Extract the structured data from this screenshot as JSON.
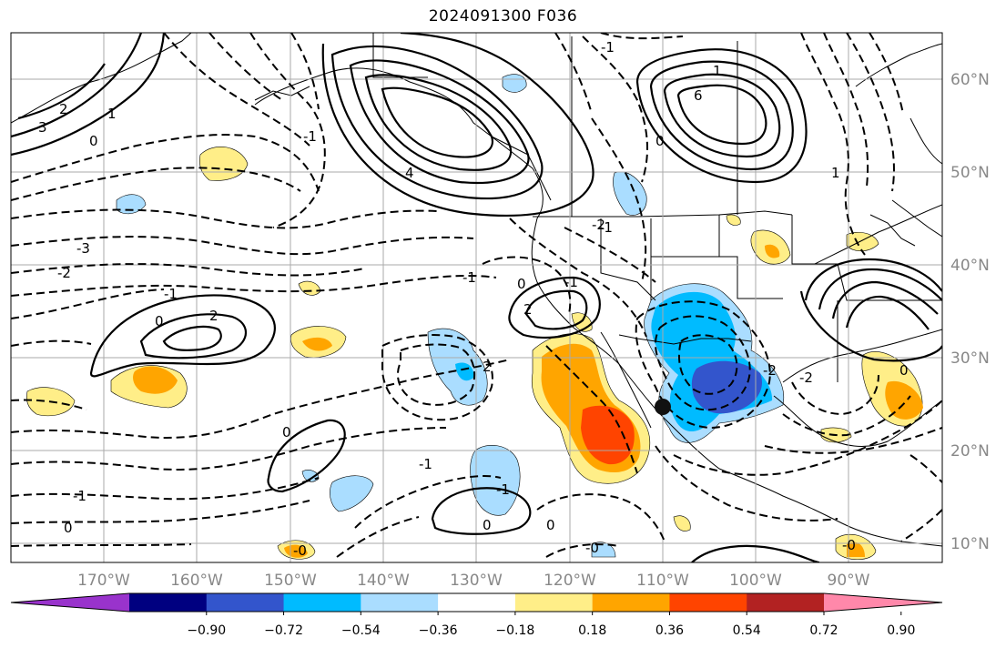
{
  "title": "2024091300 F036",
  "longitude_labels": [
    "170°W",
    "160°W",
    "150°W",
    "140°W",
    "130°W",
    "120°W",
    "110°W",
    "100°W",
    "90°W"
  ],
  "latitude_labels": [
    "60°N",
    "50°N",
    "40°N",
    "30°N",
    "20°N",
    "10°N"
  ],
  "colorbar": {
    "colors": [
      "#9933cc",
      "#000080",
      "#3355cc",
      "#00bbff",
      "#aaddff",
      "#ffffff",
      "#ffee88",
      "#ffa500",
      "#ff4400",
      "#b22222",
      "#ff88aa"
    ],
    "labels": [
      "−0.90",
      "−0.72",
      "−0.54",
      "−0.36",
      "−0.18",
      "0.18",
      "0.36",
      "0.54",
      "0.72",
      "0.90"
    ]
  },
  "contour_labels": [
    "3",
    "2",
    "1",
    "0",
    "-1",
    "-2",
    "-3",
    "4",
    "6",
    "1",
    "0",
    "-1",
    "2",
    "0",
    "-1",
    "2",
    "-1",
    "0",
    "-0",
    "-0",
    "-1",
    "-1",
    "0",
    "0",
    "-1",
    "0",
    "2",
    "-1",
    "-2",
    "-2",
    "0",
    "-2",
    "-1",
    "-0",
    "0",
    "1"
  ],
  "marker": "storm-center-dot"
}
